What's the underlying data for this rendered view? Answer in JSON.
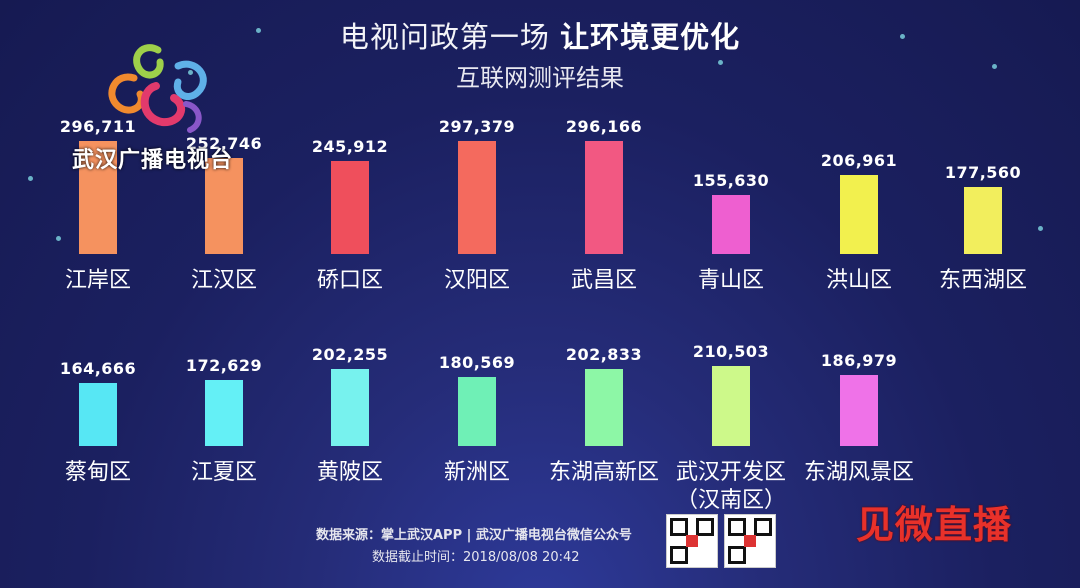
{
  "header": {
    "title_part1": "电视问政第一场",
    "title_part2": "让环境更优化",
    "subtitle": "互联网测评结果"
  },
  "logo": {
    "text": "武汉广播电视台"
  },
  "footer": {
    "source": "数据来源：掌上武汉APP | 武汉广播电视台微信公众号",
    "cutoff": "数据截止时间：2018/08/08 20:42"
  },
  "watermark": {
    "text": "见微直播"
  },
  "chart_data": {
    "type": "bar",
    "title": "电视问政第一场 让环境更优化",
    "subtitle": "互联网测评结果",
    "rows": [
      {
        "categories": [
          "江岸区",
          "江汉区",
          "硚口区",
          "汉阳区",
          "武昌区",
          "青山区",
          "洪山区",
          "东西湖区"
        ],
        "values": [
          296711,
          252746,
          245912,
          297379,
          296166,
          155630,
          206961,
          177560
        ],
        "labels": [
          "296,711",
          "252,746",
          "245,912",
          "297,379",
          "296,166",
          "155,630",
          "206,961",
          "177,560"
        ],
        "colors": [
          "#f5925f",
          "#f5925f",
          "#ef4f5c",
          "#f46a5e",
          "#f25882",
          "#ee5fd0",
          "#f2f04e",
          "#f2ee5d"
        ]
      },
      {
        "categories": [
          "蔡甸区",
          "江夏区",
          "黄陂区",
          "新洲区",
          "东湖高新区",
          "武汉开发区（汉南区）",
          "东湖风景区"
        ],
        "values": [
          164666,
          172629,
          202255,
          180569,
          202833,
          210503,
          186979
        ],
        "labels": [
          "164,666",
          "172,629",
          "202,255",
          "180,569",
          "202,833",
          "210,503",
          "186,979"
        ],
        "colors": [
          "#57e7f4",
          "#64f0f6",
          "#77f2ee",
          "#6ff0b6",
          "#8df7a6",
          "#cdf98a",
          "#ef72e8"
        ]
      }
    ]
  }
}
